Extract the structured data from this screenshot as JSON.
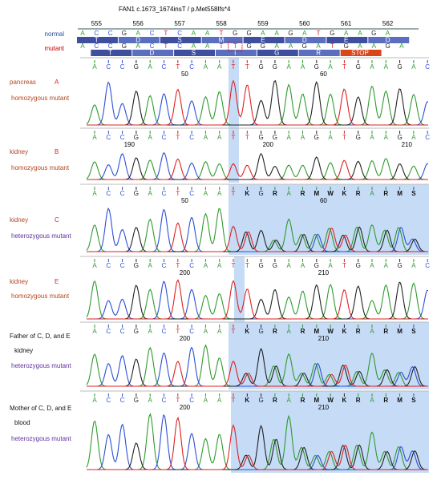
{
  "header": {
    "title": "FAN1 c.1673_1674insT / p.Met558Ifs*4",
    "codons": [
      "555",
      "556",
      "557",
      "558",
      "559",
      "560",
      "561",
      "562"
    ],
    "normal_label": "normal",
    "mutant_label": "mutant",
    "normal_bases": [
      "A",
      "C",
      "C",
      "G",
      "A",
      "C",
      "T",
      "C",
      "A",
      "A",
      "T",
      "G",
      "G",
      "A",
      "A",
      "G",
      "A",
      "T",
      "G",
      "A",
      "A",
      "G",
      "A"
    ],
    "normal_aa": [
      "T",
      "D",
      "S",
      "M",
      "E",
      "D",
      "E",
      "D"
    ],
    "mutant_bases": [
      "A",
      "C",
      "C",
      "G",
      "A",
      "C",
      "T",
      "C",
      "A",
      "A",
      "T",
      "T",
      "G",
      "G",
      "A",
      "A",
      "G",
      "A",
      "T",
      "G",
      "A",
      "A",
      "G",
      "A"
    ],
    "mutant_aa": [
      "T",
      "D",
      "S",
      "I",
      "G",
      "R",
      "STOP"
    ]
  },
  "panels": [
    {
      "letter": "A",
      "tissue": "pancreas",
      "status": "homozygous mutant",
      "numbers": [
        "50",
        "60"
      ],
      "bases": [
        "A",
        "C",
        "C",
        "G",
        "A",
        "C",
        "T",
        "C",
        "A",
        "A",
        "T",
        "T",
        "G",
        "G",
        "A",
        "A",
        "G",
        "A",
        "T",
        "G",
        "A",
        "A",
        "G",
        "A",
        "C"
      ]
    },
    {
      "letter": "B",
      "tissue": "kidney",
      "status": "homozygous mutant",
      "numbers": [
        "190",
        "200",
        "210"
      ],
      "bases": [
        "A",
        "C",
        "C",
        "G",
        "A",
        "C",
        "T",
        "C",
        "A",
        "A",
        "T",
        "T",
        "G",
        "G",
        "A",
        "A",
        "G",
        "A",
        "T",
        "G",
        "A",
        "A",
        "G",
        "A",
        "C"
      ]
    },
    {
      "letter": "C",
      "tissue": "kidney",
      "status": "heterozygous mutant",
      "numbers": [
        "50",
        "60"
      ],
      "bases": [
        "A",
        "C",
        "C",
        "G",
        "A",
        "C",
        "T",
        "C",
        "A",
        "A",
        "T",
        "K",
        "G",
        "R",
        "A",
        "R",
        "M",
        "W",
        "K",
        "R",
        "A",
        "R",
        "M",
        "S"
      ]
    },
    {
      "letter": "E",
      "tissue": "kidney",
      "status": "homozygous mutant",
      "numbers": [
        "200",
        "210"
      ],
      "bases": [
        "A",
        "C",
        "C",
        "G",
        "A",
        "C",
        "T",
        "C",
        "A",
        "A",
        "T",
        "T",
        "G",
        "G",
        "A",
        "A",
        "G",
        "A",
        "T",
        "G",
        "A",
        "A",
        "G",
        "A",
        "C"
      ]
    },
    {
      "subject": "Father of C, D, and E",
      "tissue": "kidney",
      "status": "heterozygous mutant",
      "numbers": [
        "200",
        "210"
      ],
      "bases": [
        "A",
        "C",
        "C",
        "G",
        "A",
        "C",
        "T",
        "C",
        "A",
        "A",
        "T",
        "K",
        "G",
        "R",
        "A",
        "R",
        "M",
        "W",
        "K",
        "R",
        "A",
        "R",
        "M",
        "S"
      ]
    },
    {
      "subject": "Mother of C, D, and E",
      "tissue": "blood",
      "status": "heterozygous mutant",
      "numbers": [
        "200",
        "210"
      ],
      "bases": [
        "A",
        "C",
        "C",
        "G",
        "A",
        "C",
        "T",
        "C",
        "A",
        "A",
        "T",
        "K",
        "G",
        "R",
        "A",
        "R",
        "M",
        "W",
        "K",
        "R",
        "A",
        "R",
        "M",
        "S"
      ]
    }
  ]
}
